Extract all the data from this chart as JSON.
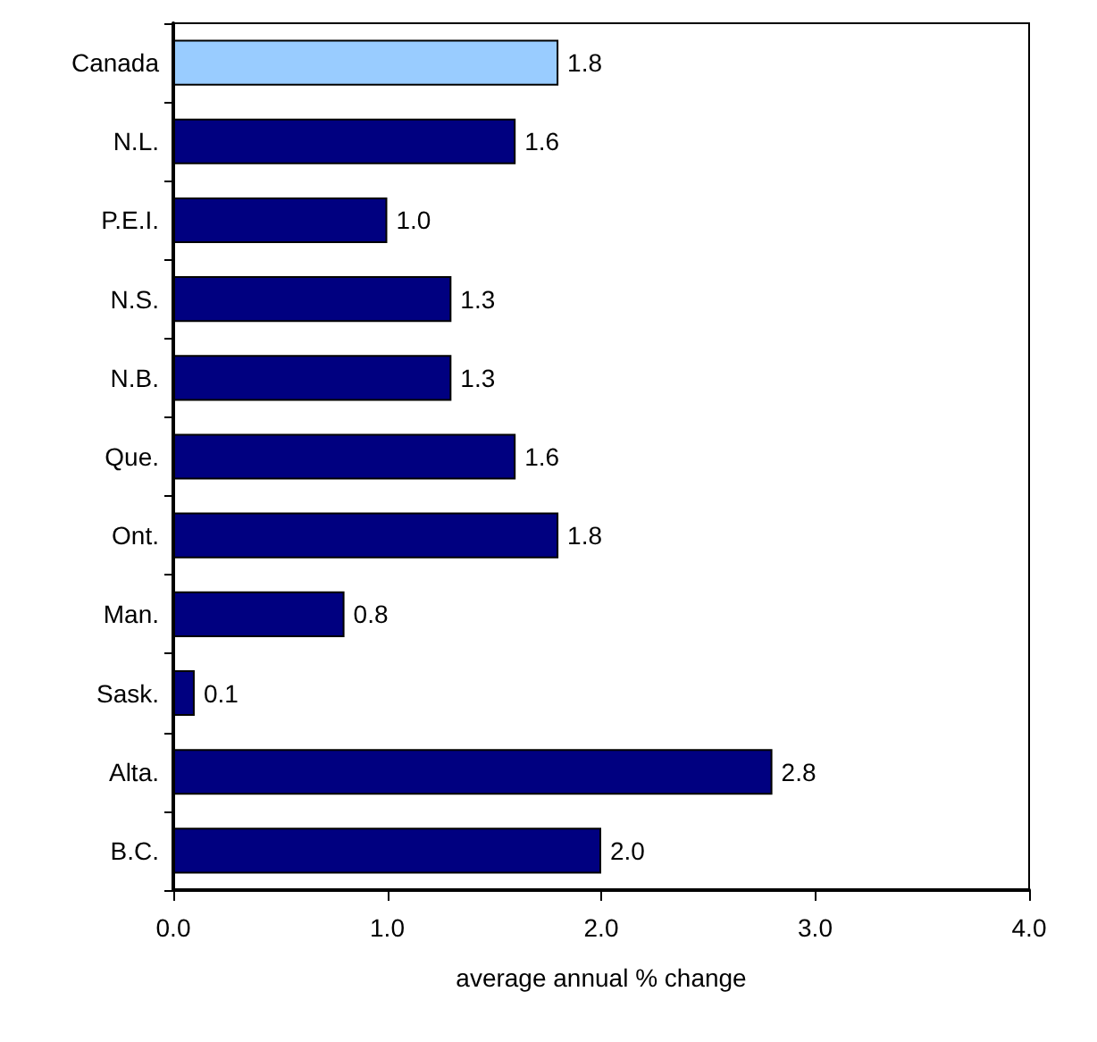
{
  "chart_data": {
    "type": "bar",
    "orientation": "horizontal",
    "xlabel": "average annual % change",
    "categories": [
      "Canada",
      "N.L.",
      "P.E.I.",
      "N.S.",
      "N.B.",
      "Que.",
      "Ont.",
      "Man.",
      "Sask.",
      "Alta.",
      "B.C."
    ],
    "values": [
      1.8,
      1.6,
      1.0,
      1.3,
      1.3,
      1.6,
      1.8,
      0.8,
      0.1,
      2.8,
      2.0
    ],
    "colors": [
      "#99ccff",
      "#000080",
      "#000080",
      "#000080",
      "#000080",
      "#000080",
      "#000080",
      "#000080",
      "#000080",
      "#000080",
      "#000080"
    ],
    "value_labels": [
      "1.8",
      "1.6",
      "1.0",
      "1.3",
      "1.3",
      "1.6",
      "1.8",
      "0.8",
      "0.1",
      "2.8",
      "2.0"
    ],
    "xlim": [
      0,
      4
    ],
    "xticks": [
      {
        "value": 0,
        "label": "0.0"
      },
      {
        "value": 1,
        "label": "1.0"
      },
      {
        "value": 2,
        "label": "2.0"
      },
      {
        "value": 3,
        "label": "3.0"
      },
      {
        "value": 4,
        "label": "4.0"
      }
    ],
    "grid": false
  }
}
